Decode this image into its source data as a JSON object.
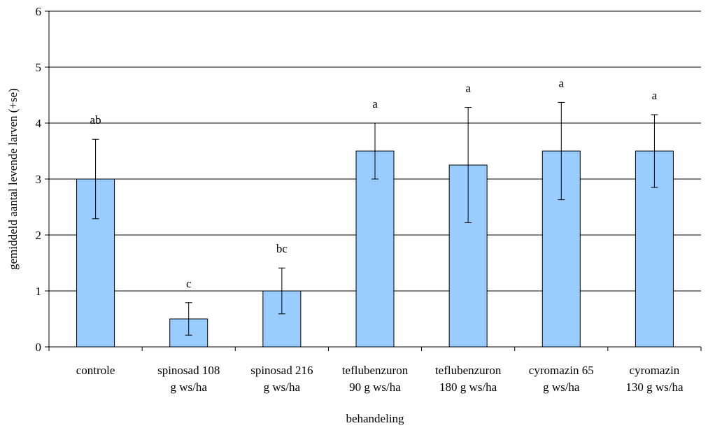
{
  "chart_data": {
    "type": "bar",
    "title": "",
    "xlabel": "behandeling",
    "ylabel": "gemiddeld aantal levende larven (+se)",
    "ylim": [
      0,
      6
    ],
    "yticks": [
      "0",
      "1",
      "2",
      "3",
      "4",
      "5",
      "6"
    ],
    "grid": true,
    "legend": "none",
    "bar_color": "#99ccff",
    "categories": [
      [
        "controle"
      ],
      [
        "spinosad 108",
        "g ws/ha"
      ],
      [
        "spinosad 216",
        "g ws/ha"
      ],
      [
        "teflubenzuron",
        "90 g ws/ha"
      ],
      [
        "teflubenzuron",
        "180 g ws/ha"
      ],
      [
        "cyromazin 65",
        "g ws/ha"
      ],
      [
        "cyromazin",
        "130 g ws/ha"
      ]
    ],
    "values": [
      3.0,
      0.5,
      1.0,
      3.5,
      3.25,
      3.5,
      3.5
    ],
    "error_low": [
      2.29,
      0.21,
      0.59,
      3.0,
      2.22,
      2.63,
      2.85
    ],
    "error_high": [
      3.71,
      0.79,
      1.41,
      4.0,
      4.28,
      4.37,
      4.15
    ],
    "significance_letters": [
      "ab",
      "c",
      "bc",
      "a",
      "a",
      "a",
      "a"
    ]
  }
}
